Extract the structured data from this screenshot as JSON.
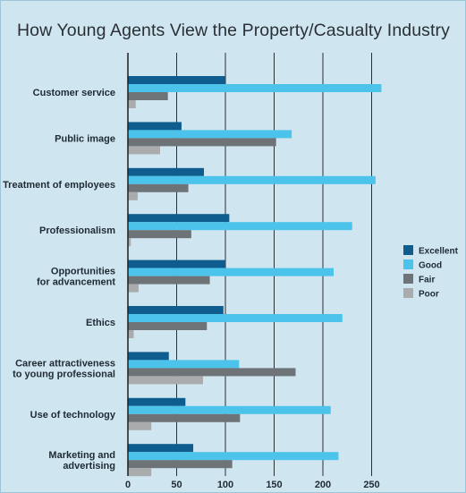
{
  "chart_data": {
    "type": "bar",
    "orientation": "horizontal",
    "title": "How Young Agents View the Property/Casualty Industry",
    "categories": [
      [
        "Customer service"
      ],
      [
        "Public image"
      ],
      [
        "Treatment of employees"
      ],
      [
        "Professionalism"
      ],
      [
        "Opportunities",
        "for advancement"
      ],
      [
        "Ethics"
      ],
      [
        "Career attractiveness",
        "to young professional"
      ],
      [
        "Use of technology"
      ],
      [
        "Marketing and",
        "advertising"
      ]
    ],
    "series": [
      {
        "name": "Excellent",
        "color": "#0f5d8f",
        "values": [
          100,
          55,
          78,
          104,
          100,
          98,
          42,
          59,
          67
        ]
      },
      {
        "name": "Good",
        "color": "#4cc3ea",
        "values": [
          260,
          168,
          254,
          230,
          211,
          220,
          114,
          208,
          216
        ]
      },
      {
        "name": "Fair",
        "color": "#6e7377",
        "values": [
          41,
          152,
          62,
          65,
          84,
          81,
          172,
          115,
          107
        ]
      },
      {
        "name": "Poor",
        "color": "#a9abad",
        "values": [
          8,
          33,
          10,
          3,
          11,
          6,
          77,
          24,
          24
        ]
      }
    ],
    "x_ticks": [
      0,
      50,
      100,
      150,
      200,
      250
    ],
    "xlim": [
      0,
      260
    ],
    "grid": true,
    "legend_position": "right"
  }
}
